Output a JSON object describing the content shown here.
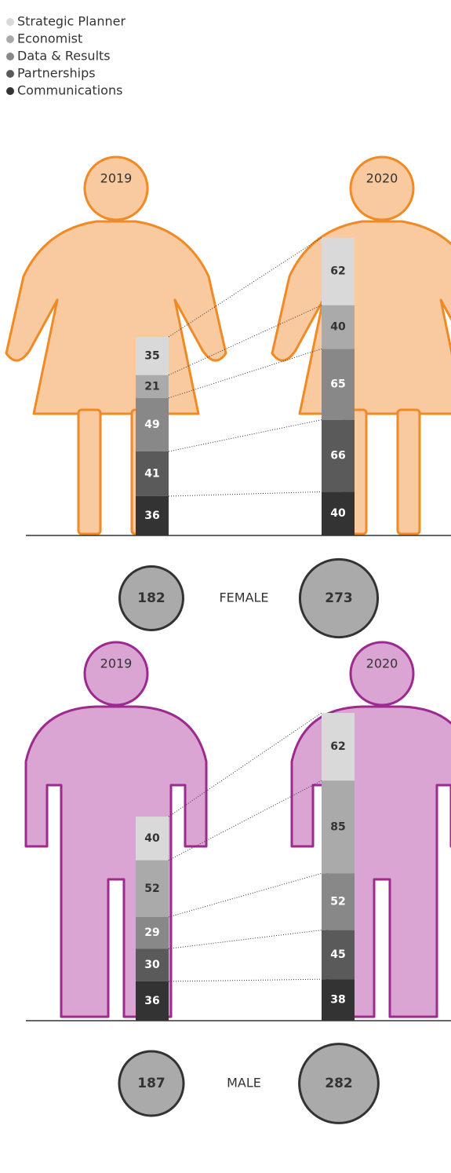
{
  "chart_data": {
    "type": "bar",
    "stacked": true,
    "series": [
      {
        "name": "Strategic Planner",
        "color": "#d9d9d9",
        "values": [
          35,
          62,
          40,
          62
        ]
      },
      {
        "name": "Economist",
        "color": "#aaaaaa",
        "values": [
          21,
          40,
          52,
          85
        ]
      },
      {
        "name": "Data & Results",
        "color": "#888888",
        "values": [
          49,
          65,
          29,
          52
        ]
      },
      {
        "name": "Partnerships",
        "color": "#5a5a5a",
        "values": [
          41,
          66,
          30,
          45
        ]
      },
      {
        "name": "Communications",
        "color": "#333333",
        "values": [
          36,
          40,
          36,
          38
        ]
      }
    ],
    "categories": [
      "2019",
      "2020",
      "2019",
      "2020"
    ],
    "groups": [
      "FEMALE",
      "MALE"
    ],
    "totals": [
      182,
      273,
      187,
      282
    ]
  }
}
